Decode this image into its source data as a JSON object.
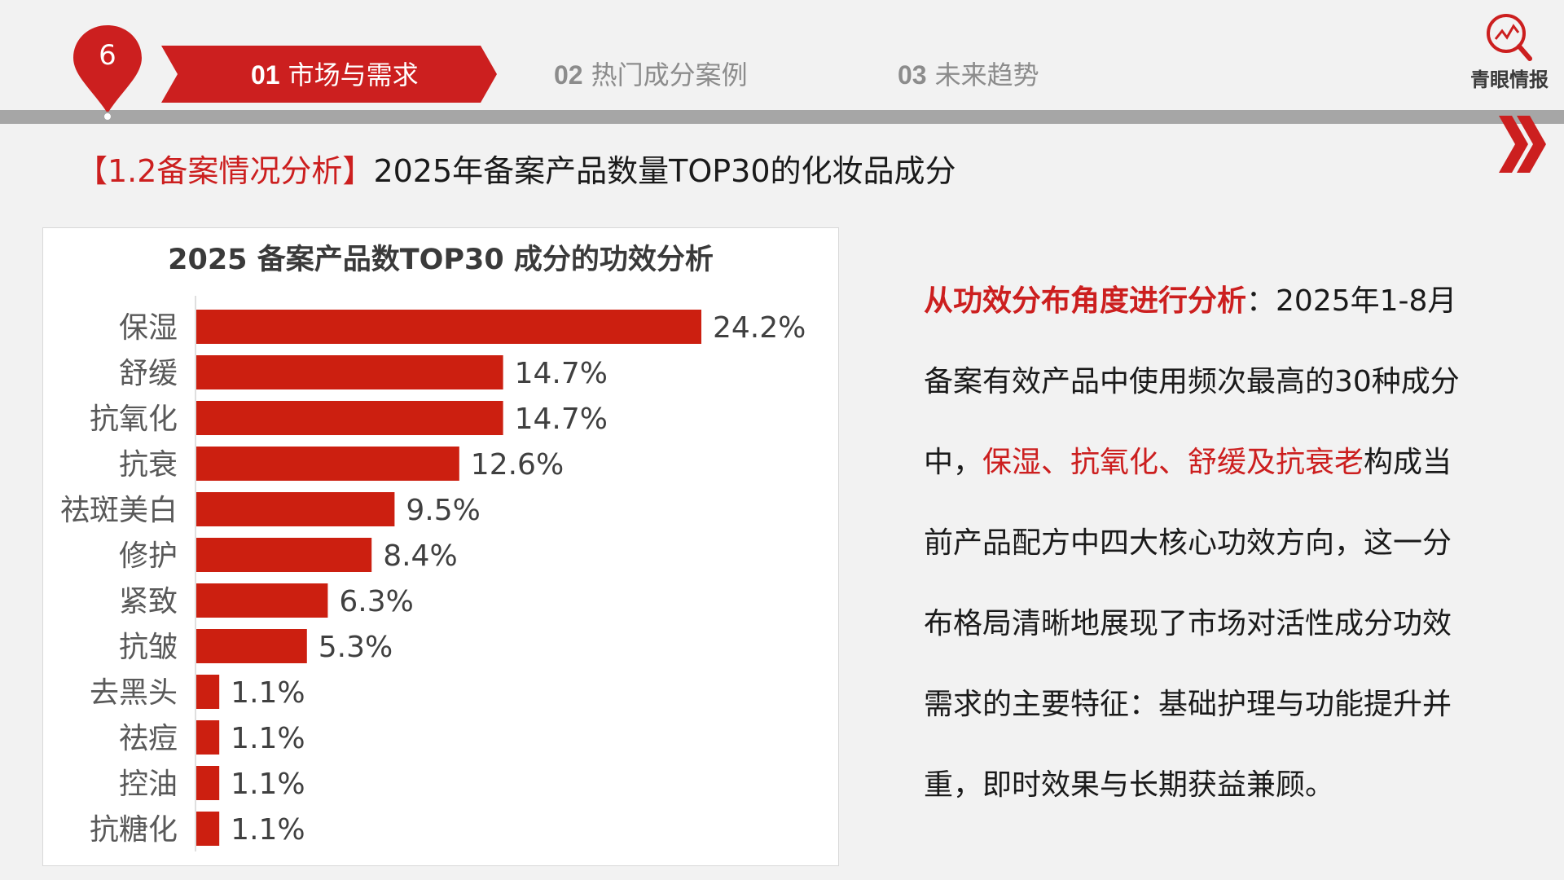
{
  "header": {
    "page_number": "6",
    "tabs": [
      {
        "num": "01",
        "label": "市场与需求",
        "active": true
      },
      {
        "num": "02",
        "label": "热门成分案例",
        "active": false
      },
      {
        "num": "03",
        "label": "未来趋势",
        "active": false
      }
    ],
    "logo_text": "青眼情报"
  },
  "section": {
    "tag": "【1.2备案情况分析】",
    "title": "2025年备案产品数量TOP30的化妆品成分"
  },
  "chart_data": {
    "type": "bar",
    "orientation": "horizontal",
    "title": "2025 备案产品数TOP30 成分的功效分析",
    "categories": [
      "保湿",
      "舒缓",
      "抗氧化",
      "抗衰",
      "祛斑美白",
      "修护",
      "紧致",
      "抗皱",
      "去黑头",
      "祛痘",
      "控油",
      "抗糖化"
    ],
    "values": [
      24.2,
      14.7,
      14.7,
      12.6,
      9.5,
      8.4,
      6.3,
      5.3,
      1.1,
      1.1,
      1.1,
      1.1
    ],
    "labels": [
      "24.2%",
      "14.7%",
      "14.7%",
      "12.6%",
      "9.5%",
      "8.4%",
      "6.3%",
      "5.3%",
      "1.1%",
      "1.1%",
      "1.1%",
      "1.1%"
    ],
    "unit": "%",
    "xlabel": "",
    "ylabel": "",
    "xlim": [
      0,
      24.2
    ],
    "grid": false,
    "legend": "none",
    "bar_color": "#cc1f10"
  },
  "analysis": {
    "lead": "从功效分布角度进行分析",
    "part1": "：2025年1-8月备案有效产品中使用频次最高的30种成分中，",
    "highlight": "保湿、抗氧化、舒缓及抗衰老",
    "part2": "构成当前产品配方中四大核心功效方向，这一分布格局清晰地展现了市场对活性成分功效需求的主要特征：基础护理与功能提升并重，即时效果与长期获益兼顾。"
  },
  "colors": {
    "accent": "#cc1f1f",
    "rule": "#a6a6a6",
    "background": "#f2f2f2"
  }
}
